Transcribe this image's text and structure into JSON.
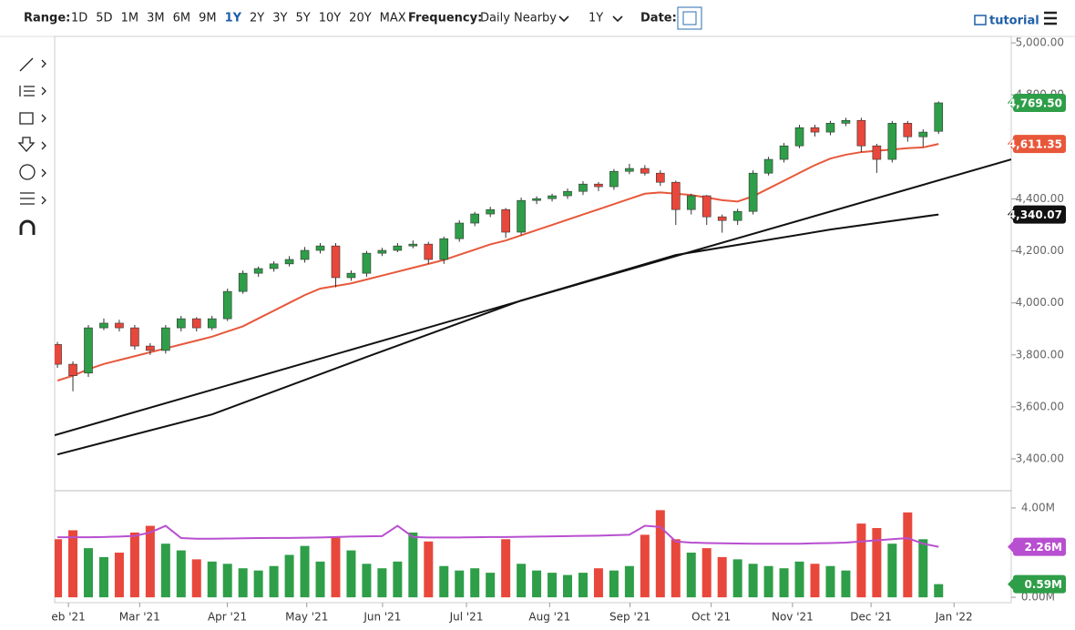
{
  "toolbar": {
    "range_label": "Range:",
    "ranges": [
      "1D",
      "5D",
      "1M",
      "3M",
      "6M",
      "9M",
      "1Y",
      "2Y",
      "3Y",
      "5Y",
      "10Y",
      "20Y",
      "MAX"
    ],
    "active_range": "1Y",
    "frequency_label": "Frequency:",
    "frequency": "Daily Nearby",
    "period": "1Y",
    "date_label": "Date:",
    "tutorial": "tutorial"
  },
  "chart_data": [
    {
      "type": "candlestick",
      "up_color": "#2e9e48",
      "down_color": "#e8473b",
      "open": [
        3840,
        3764,
        3730,
        3904,
        3922,
        3904,
        3834,
        3817,
        3904,
        3939,
        3904,
        3939,
        4044,
        4114,
        4132,
        4150,
        4167,
        4202,
        4219,
        4097,
        4114,
        4191,
        4202,
        4219,
        4226,
        4167,
        4247,
        4307,
        4342,
        4359,
        4272,
        4394,
        4401,
        4412,
        4429,
        4457,
        4447,
        4506,
        4517,
        4499,
        4464,
        4359,
        4412,
        4331,
        4317,
        4352,
        4499,
        4552,
        4604,
        4674,
        4657,
        4691,
        4702,
        4604,
        4552,
        4691,
        4639,
        4660
      ],
      "high": [
        3850,
        3775,
        3915,
        3940,
        3935,
        3915,
        3845,
        3915,
        3950,
        3945,
        3950,
        4055,
        4125,
        4140,
        4160,
        4180,
        4215,
        4230,
        4230,
        4125,
        4200,
        4212,
        4230,
        4240,
        4235,
        4255,
        4318,
        4350,
        4370,
        4365,
        4405,
        4410,
        4420,
        4440,
        4468,
        4465,
        4515,
        4535,
        4530,
        4510,
        4470,
        4420,
        4415,
        4340,
        4362,
        4510,
        4562,
        4615,
        4685,
        4685,
        4700,
        4712,
        4712,
        4612,
        4700,
        4700,
        4668,
        4775
      ],
      "low": [
        3750,
        3660,
        3715,
        3895,
        3890,
        3820,
        3800,
        3805,
        3890,
        3890,
        3895,
        3930,
        4035,
        4100,
        4120,
        4140,
        4155,
        4190,
        4060,
        4085,
        4100,
        4180,
        4195,
        4210,
        4150,
        4150,
        4235,
        4295,
        4330,
        4250,
        4260,
        4380,
        4390,
        4400,
        4415,
        4430,
        4435,
        4495,
        4490,
        4450,
        4300,
        4340,
        4300,
        4270,
        4300,
        4340,
        4490,
        4540,
        4595,
        4640,
        4645,
        4680,
        4580,
        4500,
        4540,
        4620,
        4600,
        4650
      ],
      "close": [
        3764,
        3720,
        3904,
        3922,
        3904,
        3834,
        3817,
        3904,
        3939,
        3904,
        3939,
        4044,
        4114,
        4132,
        4150,
        4167,
        4202,
        4219,
        4097,
        4114,
        4191,
        4202,
        4219,
        4226,
        4167,
        4247,
        4307,
        4342,
        4359,
        4272,
        4394,
        4401,
        4412,
        4429,
        4457,
        4447,
        4506,
        4517,
        4499,
        4464,
        4359,
        4412,
        4331,
        4317,
        4352,
        4499,
        4552,
        4604,
        4674,
        4657,
        4691,
        4702,
        4604,
        4552,
        4691,
        4639,
        4657,
        4769.5
      ],
      "last_label": "4,769.50",
      "lines": [
        {
          "color": "#e8573a",
          "values": [
            3701,
            3720,
            3745,
            3765,
            3780,
            3795,
            3810,
            3825,
            3840,
            3855,
            3870,
            3890,
            3910,
            3940,
            3970,
            4000,
            4030,
            4055,
            4065,
            4075,
            4090,
            4105,
            4120,
            4135,
            4150,
            4165,
            4185,
            4205,
            4225,
            4240,
            4260,
            4280,
            4300,
            4320,
            4340,
            4360,
            4380,
            4400,
            4420,
            4425,
            4420,
            4415,
            4405,
            4395,
            4390,
            4410,
            4440,
            4470,
            4500,
            4530,
            4555,
            4570,
            4580,
            4585,
            4590,
            4595,
            4598,
            4611.35
          ],
          "last_label": "4,611.35"
        },
        {
          "color": "#111111",
          "x": [
            0,
            10,
            20,
            30,
            40,
            50,
            57
          ],
          "values": [
            3417,
            3571,
            3792,
            4009,
            4184,
            4282,
            4340.07
          ],
          "last_label": "4,340.07"
        },
        {
          "color": "#111111",
          "x": [
            -0.18,
            61.7
          ],
          "values": [
            3491,
            4552
          ]
        }
      ],
      "xlim": [
        -0.18,
        61.7
      ],
      "ylim": [
        3281,
        5025
      ],
      "yticks": [
        {
          "value": 3400,
          "label": "3,400.00"
        },
        {
          "value": 3600,
          "label": "3,600.00"
        },
        {
          "value": 3800,
          "label": "3,800.00"
        },
        {
          "value": 4000,
          "label": "4,000.00"
        },
        {
          "value": 4200,
          "label": "4,200.00"
        },
        {
          "value": 4400,
          "label": "4,400.00"
        },
        {
          "value": 4800,
          "label": "4,800.00"
        },
        {
          "value": 5000,
          "label": "5,000.00"
        }
      ],
      "xticks": [
        {
          "value": 0.71,
          "label": "eb '21"
        },
        {
          "value": 5.32,
          "label": "Mar '21"
        },
        {
          "value": 10.99,
          "label": "Apr '21"
        },
        {
          "value": 16.13,
          "label": "May '21"
        },
        {
          "value": 21.03,
          "label": "Jun '21"
        },
        {
          "value": 26.46,
          "label": "Jul '21"
        },
        {
          "value": 31.84,
          "label": "Aug '21"
        },
        {
          "value": 37.04,
          "label": "Sep '21"
        },
        {
          "value": 42.29,
          "label": "Oct '21"
        },
        {
          "value": 47.55,
          "label": "Nov '21"
        },
        {
          "value": 52.63,
          "label": "Dec '21"
        },
        {
          "value": 58.0,
          "label": "Jan '22"
        }
      ]
    },
    {
      "type": "bar",
      "xlim": [
        -0.18,
        61.7
      ],
      "ylim": [
        -0.24,
        4.73
      ],
      "values": [
        2.6,
        3.0,
        2.2,
        1.8,
        2.0,
        2.9,
        3.2,
        2.4,
        2.1,
        1.7,
        1.6,
        1.5,
        1.3,
        1.2,
        1.4,
        1.9,
        2.3,
        1.6,
        2.7,
        2.1,
        1.5,
        1.3,
        1.6,
        2.9,
        2.5,
        1.4,
        1.2,
        1.3,
        1.1,
        2.6,
        1.5,
        1.2,
        1.1,
        1.0,
        1.1,
        1.3,
        1.2,
        1.4,
        2.8,
        3.9,
        2.6,
        2.0,
        2.2,
        1.8,
        1.7,
        1.5,
        1.4,
        1.3,
        1.6,
        1.5,
        1.4,
        1.2,
        3.3,
        3.1,
        2.4,
        3.8,
        2.6,
        0.59
      ],
      "last_label": "0.59M",
      "lines": [
        {
          "color": "#b84fd0",
          "values": [
            2.69,
            2.69,
            2.69,
            2.7,
            2.72,
            2.75,
            2.9,
            3.2,
            2.65,
            2.62,
            2.62,
            2.63,
            2.64,
            2.65,
            2.66,
            2.66,
            2.67,
            2.68,
            2.7,
            2.72,
            2.73,
            2.74,
            3.2,
            2.7,
            2.68,
            2.68,
            2.68,
            2.69,
            2.7,
            2.7,
            2.71,
            2.72,
            2.73,
            2.74,
            2.75,
            2.76,
            2.78,
            2.8,
            3.2,
            3.15,
            2.5,
            2.45,
            2.43,
            2.42,
            2.41,
            2.4,
            2.4,
            2.4,
            2.4,
            2.42,
            2.43,
            2.45,
            2.5,
            2.55,
            2.6,
            2.65,
            2.4,
            2.26
          ],
          "last_label": "2.26M"
        }
      ],
      "yticks": [
        {
          "value": 0,
          "label": "0.00M"
        },
        {
          "value": 4,
          "label": "4.00M"
        }
      ]
    }
  ]
}
